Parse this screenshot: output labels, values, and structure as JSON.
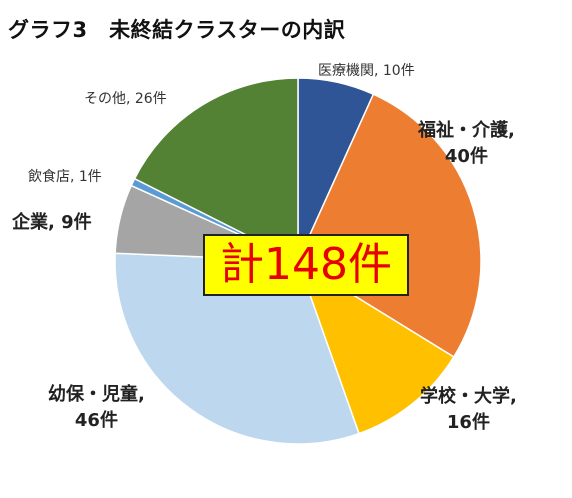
{
  "chart_data": {
    "type": "pie",
    "title": "グラフ3　未終結クラスターの内訳",
    "total_label": "計148件",
    "start_angle_deg": 0,
    "direction": "clockwise",
    "slices": [
      {
        "label_line1": "医療機関, 10件",
        "label_line2": "",
        "value": 10,
        "color": "#2f5597"
      },
      {
        "label_line1": "福祉・介護,",
        "label_line2": "40件",
        "value": 40,
        "color": "#ed7d31"
      },
      {
        "label_line1": "学校・大学,",
        "label_line2": "16件",
        "value": 16,
        "color": "#ffc000"
      },
      {
        "label_line1": "幼保・児童,",
        "label_line2": "46件",
        "value": 46,
        "color": "#bdd7ee"
      },
      {
        "label_line1": "企業, 9件",
        "label_line2": "",
        "value": 9,
        "color": "#a5a5a5"
      },
      {
        "label_line1": "飲食店, 1件",
        "label_line2": "",
        "value": 1,
        "color": "#5b9bd5"
      },
      {
        "label_line1": "その他, 26件",
        "label_line2": "",
        "value": 26,
        "color": "#548235"
      }
    ]
  }
}
